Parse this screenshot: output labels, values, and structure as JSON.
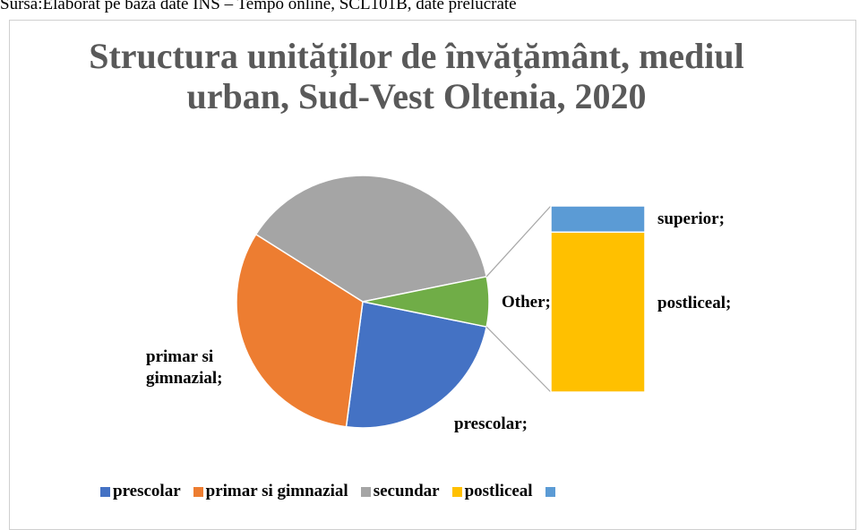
{
  "source": "Sursa:Elaborat pe baza date INS – Tempo online, SCL101B, date prelucrate",
  "chart_data": {
    "type": "bar_of_pie",
    "title": "Structura unităților de învățământ, mediul\nurban, Sud-Vest Oltenia, 2020",
    "categories": [
      "prescolar",
      "primar si gimnazial",
      "secundar",
      "postliceal",
      "superior"
    ],
    "values": [
      24,
      32,
      38,
      5.5,
      0.9
    ],
    "colors": [
      "#4472c4",
      "#ed7d31",
      "#a5a5a5",
      "#ffc000",
      "#5b9bd5"
    ],
    "other_color": "#70ad47",
    "in_bar": [
      false,
      false,
      false,
      true,
      true
    ],
    "data_labels": [
      "prescolar;",
      "primar si gimnazial;",
      null,
      "postliceal;",
      "superior;"
    ],
    "other_label": "Other;",
    "legend": [
      "prescolar",
      "primar si gimnazial",
      "secundar",
      "postliceal",
      null
    ]
  }
}
